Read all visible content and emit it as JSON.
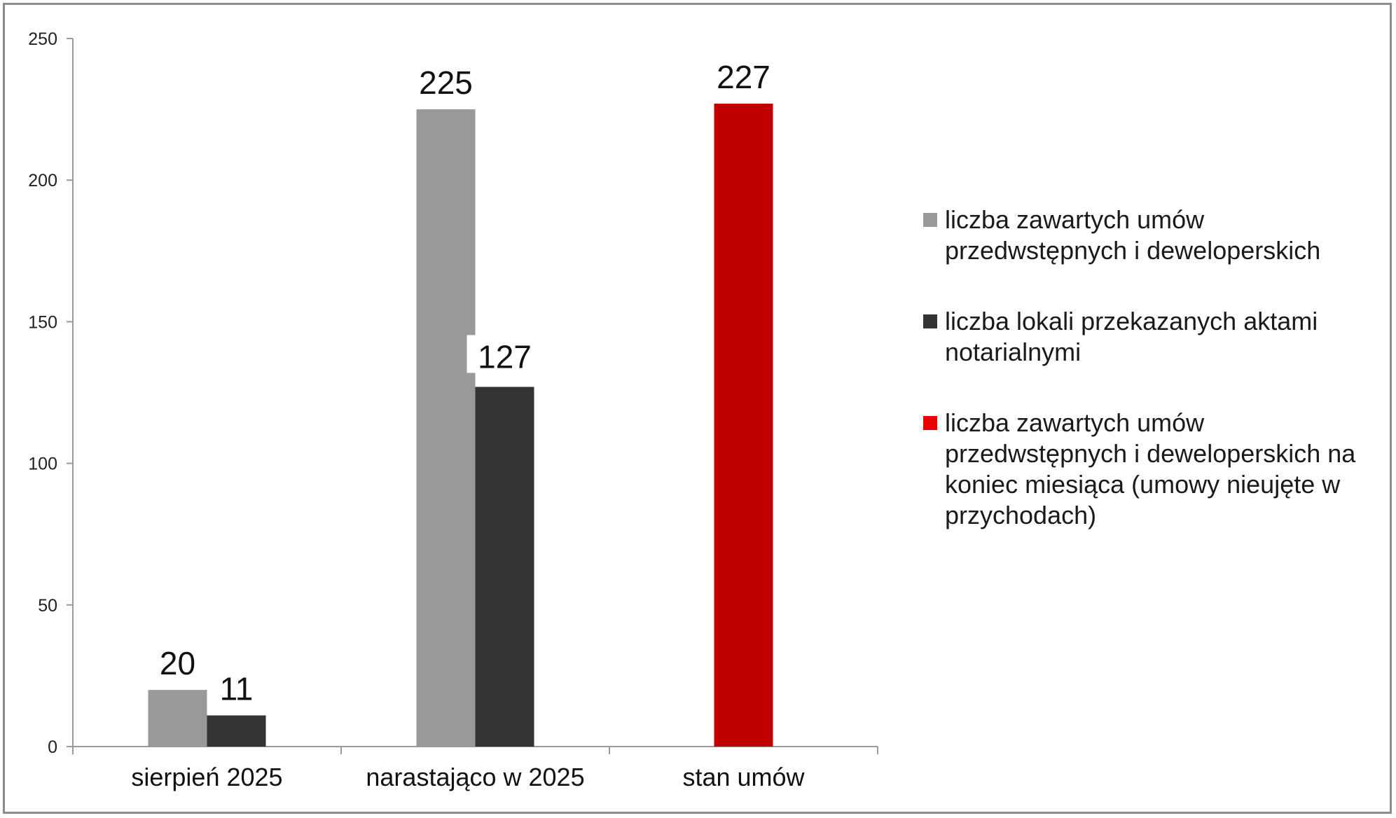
{
  "chart_data": {
    "type": "bar",
    "categories": [
      "sierpień 2025",
      "narastająco w 2025",
      "stan umów"
    ],
    "series": [
      {
        "name": "liczba zawartych umów przedwstępnych i deweloperskich",
        "color": "#999999",
        "values": [
          20,
          225,
          null
        ],
        "labels": [
          "20",
          "225",
          ""
        ]
      },
      {
        "name": "liczba lokali przekazanych aktami notarialnymi",
        "color": "#333333",
        "values": [
          11,
          127,
          null
        ],
        "labels": [
          "11",
          "127",
          ""
        ]
      },
      {
        "name": "liczba zawartych umów przedwstępnych i deweloperskich na koniec miesiąca (umowy nieujęte w przychodach)",
        "color": "#c00000",
        "legend_color": "#ee0000",
        "values": [
          null,
          null,
          227
        ],
        "labels": [
          "",
          "",
          "227"
        ]
      }
    ],
    "ylim": [
      0,
      250
    ],
    "yticks": [
      "0",
      "50",
      "100",
      "150",
      "200",
      "250"
    ],
    "grid": false,
    "legend_position": "right"
  }
}
